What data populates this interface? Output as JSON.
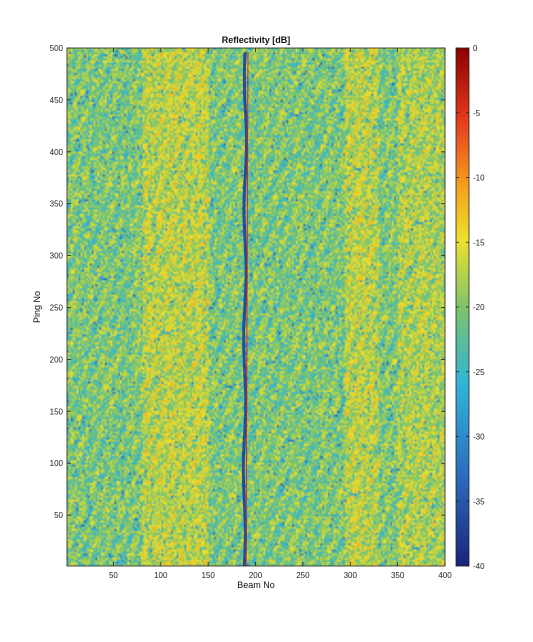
{
  "chart_data": {
    "type": "heatmap",
    "title": "Reflectivity [dB]",
    "xlabel": "Beam No",
    "ylabel": "Ping No",
    "xlim": [
      1,
      400
    ],
    "ylim": [
      1,
      500
    ],
    "xticks": [
      50,
      100,
      150,
      200,
      250,
      300,
      350,
      400
    ],
    "yticks": [
      50,
      100,
      150,
      200,
      250,
      300,
      350,
      400,
      450,
      500
    ],
    "colorbar": {
      "colormap": "parula",
      "range": [
        -40,
        0
      ],
      "ticks": [
        0,
        -5,
        -10,
        -15,
        -20,
        -25,
        -30,
        -35,
        -40
      ],
      "units": "dB"
    },
    "z_range": [
      -40,
      0
    ],
    "typical_background_dB": -21,
    "features": [
      {
        "beam_center": 188,
        "type": "near-nadir low-reflectivity track",
        "value_dB": -38
      },
      {
        "beam_center": 190,
        "type": "near-nadir high-reflectivity streak",
        "value_dB": -2
      },
      {
        "beam_range": [
          80,
          150
        ],
        "type": "higher-reflectivity band",
        "value_dB": -16
      },
      {
        "beam_range": [
          295,
          330
        ],
        "type": "higher-reflectivity band",
        "value_dB": -16
      },
      {
        "beam_range": [
          350,
          400
        ],
        "type": "higher-reflectivity band",
        "value_dB": -17
      }
    ],
    "grid": false,
    "colors": {
      "parula_stops": [
        "#3e26a8",
        "#4254ea",
        "#2a8fe0",
        "#14b5c2",
        "#41c38a",
        "#9bc94c",
        "#e3bc2c",
        "#fccd2a",
        "#f9e72d"
      ],
      "nadir_low": "#1b3e9a",
      "nadir_high": "#d01c1c",
      "colorbar_top": "#8b0000",
      "colorbar_mid_red": "#e63b1e",
      "colorbar_orange": "#f5a21d",
      "colorbar_yellow": "#eee02c",
      "colorbar_green": "#7ec46a",
      "colorbar_cyan": "#2fb4d8",
      "colorbar_blue": "#2c6fc0",
      "colorbar_bottom": "#1a237e"
    }
  }
}
